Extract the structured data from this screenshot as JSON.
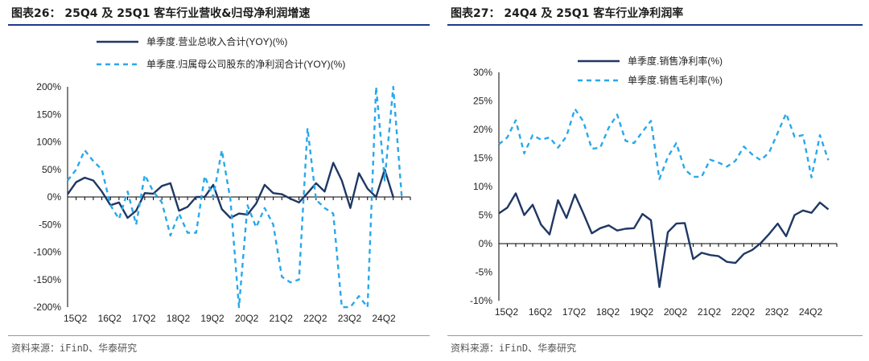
{
  "panels": [
    {
      "title": "图表26：  25Q4 及 25Q1 客车行业营收&归母净利润增速",
      "source": "资料来源：iFinD、华泰研究"
    },
    {
      "title": "图表27：  24Q4 及 25Q1 客车行业净利润率",
      "source": "资料来源：iFinD、华泰研究"
    }
  ],
  "colors": {
    "dark_blue": "#1f3864",
    "light_blue": "#29a8ea",
    "title_rule": "#1e3a8a"
  },
  "chart_data": [
    {
      "type": "line",
      "x": [
        "15Q1",
        "15Q2",
        "15Q3",
        "15Q4",
        "16Q1",
        "16Q2",
        "16Q3",
        "16Q4",
        "17Q1",
        "17Q2",
        "17Q3",
        "17Q4",
        "18Q1",
        "18Q2",
        "18Q3",
        "18Q4",
        "19Q1",
        "19Q2",
        "19Q3",
        "19Q4",
        "20Q1",
        "20Q2",
        "20Q3",
        "20Q4",
        "21Q1",
        "21Q2",
        "21Q3",
        "21Q4",
        "22Q1",
        "22Q2",
        "22Q3",
        "22Q4",
        "23Q1",
        "23Q2",
        "23Q3",
        "23Q4",
        "24Q1",
        "24Q2",
        "24Q3",
        "24Q4",
        "25Q1"
      ],
      "xticks": [
        "15Q2",
        "16Q2",
        "17Q2",
        "18Q2",
        "19Q2",
        "20Q2",
        "21Q2",
        "22Q2",
        "23Q2",
        "24Q2"
      ],
      "yticks": [
        "200%",
        "150%",
        "100%",
        "50%",
        "0%",
        "-50%",
        "-100%",
        "-150%",
        "-200%"
      ],
      "ylim": [
        -200,
        200
      ],
      "series": [
        {
          "name": "单季度.营业总收入合计(YOY)(%)",
          "style": "solid",
          "values": [
            5,
            27,
            35,
            30,
            10,
            -15,
            -10,
            -38,
            -25,
            7,
            6,
            20,
            25,
            -25,
            -18,
            0,
            0,
            22,
            -22,
            -38,
            -30,
            -32,
            -12,
            22,
            7,
            5,
            -3,
            -10,
            7,
            25,
            10,
            62,
            30,
            -20,
            43,
            15,
            0,
            50,
            0,
            null,
            null
          ]
        },
        {
          "name": "单季度.归属母公司股东的净利润合计(YOY)(%)",
          "style": "dashed",
          "values": [
            30,
            50,
            85,
            65,
            50,
            -15,
            -40,
            10,
            -50,
            40,
            10,
            -10,
            -70,
            -30,
            -65,
            -65,
            38,
            0,
            85,
            -5,
            -200,
            -15,
            -55,
            -20,
            -50,
            -145,
            -155,
            -150,
            125,
            -5,
            -20,
            -30,
            -200,
            -200,
            -180,
            -200,
            200,
            30,
            200,
            0,
            null
          ]
        }
      ]
    },
    {
      "type": "line",
      "x": [
        "15Q1",
        "15Q2",
        "15Q3",
        "15Q4",
        "16Q1",
        "16Q2",
        "16Q3",
        "16Q4",
        "17Q1",
        "17Q2",
        "17Q3",
        "17Q4",
        "18Q1",
        "18Q2",
        "18Q3",
        "18Q4",
        "19Q1",
        "19Q2",
        "19Q3",
        "19Q4",
        "20Q1",
        "20Q2",
        "20Q3",
        "20Q4",
        "21Q1",
        "21Q2",
        "21Q3",
        "21Q4",
        "22Q1",
        "22Q2",
        "22Q3",
        "22Q4",
        "23Q1",
        "23Q2",
        "23Q3",
        "23Q4",
        "24Q1",
        "24Q2",
        "24Q3",
        "24Q4",
        "25Q1"
      ],
      "xticks": [
        "15Q2",
        "16Q2",
        "17Q2",
        "18Q2",
        "19Q2",
        "20Q2",
        "21Q2",
        "22Q2",
        "23Q2",
        "24Q2"
      ],
      "yticks": [
        "30%",
        "25%",
        "20%",
        "15%",
        "10%",
        "5%",
        "0%",
        "-5%",
        "-10%"
      ],
      "ylim": [
        -10,
        30
      ],
      "series": [
        {
          "name": "单季度.销售净利率(%)",
          "style": "solid",
          "values": [
            5.3,
            6.3,
            8.8,
            5.0,
            6.8,
            3.3,
            1.6,
            7.6,
            4.5,
            8.6,
            5.3,
            1.8,
            2.7,
            3.2,
            2.3,
            2.6,
            2.7,
            5.2,
            4.1,
            -7.6,
            2.0,
            3.5,
            3.6,
            -2.7,
            -1.6,
            -2.0,
            -2.2,
            -3.2,
            -3.4,
            -1.8,
            -1.1,
            0.1,
            1.7,
            3.5,
            1.3,
            5.0,
            5.8,
            5.4,
            7.2,
            6.0,
            null
          ]
        },
        {
          "name": "单季度.销售毛利率(%)",
          "style": "dashed",
          "values": [
            17.4,
            18.6,
            21.6,
            15.8,
            19.0,
            18.2,
            18.6,
            16.8,
            18.8,
            23.6,
            21.4,
            16.6,
            16.8,
            20.3,
            22.6,
            18.0,
            17.6,
            19.6,
            21.5,
            11.3,
            15.2,
            17.6,
            13.0,
            11.7,
            11.7,
            14.7,
            14.2,
            13.5,
            14.5,
            17.0,
            15.6,
            14.6,
            16.0,
            19.4,
            22.8,
            18.7,
            19.0,
            11.6,
            19.0,
            14.6,
            null
          ]
        }
      ]
    }
  ]
}
